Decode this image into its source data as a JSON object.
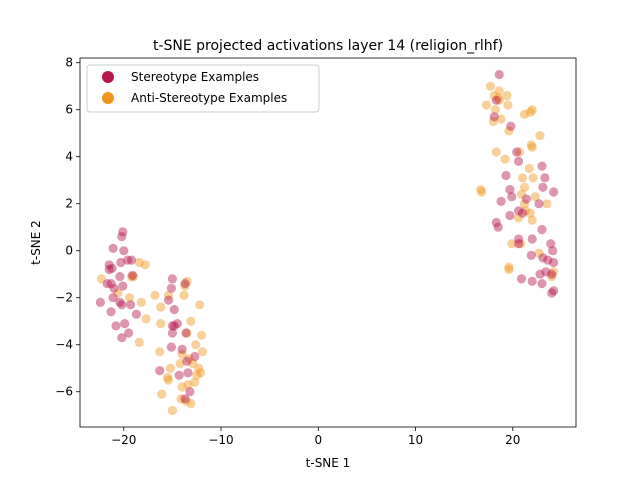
{
  "chart_data": {
    "type": "scatter",
    "title": "t-SNE projected activations layer 14 (religion_rlhf)",
    "xlabel": "t-SNE 1",
    "ylabel": "t-SNE 2",
    "xlim": [
      -24.5,
      26.5
    ],
    "ylim": [
      -7.5,
      8.2
    ],
    "xticks": [
      -20,
      -10,
      0,
      10,
      20
    ],
    "yticks": [
      -6,
      -4,
      -2,
      0,
      2,
      4,
      6,
      8
    ],
    "grid": false,
    "legend_position": "top-left",
    "series": [
      {
        "name": "Stereotype Examples",
        "color": "#b5174d",
        "points": [
          [
            -20.1,
            0.8
          ],
          [
            -20.2,
            0.6
          ],
          [
            -21.1,
            0.1
          ],
          [
            -20.0,
            0.0
          ],
          [
            -19.6,
            -0.4
          ],
          [
            -19.2,
            -0.4
          ],
          [
            -20.3,
            -0.5
          ],
          [
            -21.5,
            -0.6
          ],
          [
            -21.2,
            -0.75
          ],
          [
            -21.5,
            -0.8
          ],
          [
            -20.4,
            -1.1
          ],
          [
            -19.1,
            -1.05
          ],
          [
            -21.3,
            -1.4
          ],
          [
            -21.7,
            -1.4
          ],
          [
            -20.1,
            -1.5
          ],
          [
            -21.0,
            -1.6
          ],
          [
            -21.1,
            -2.0
          ],
          [
            -22.4,
            -2.2
          ],
          [
            -20.4,
            -2.2
          ],
          [
            -20.2,
            -2.3
          ],
          [
            -19.3,
            -2.3
          ],
          [
            -21.3,
            -2.6
          ],
          [
            -18.7,
            -2.7
          ],
          [
            -20.8,
            -3.2
          ],
          [
            -19.9,
            -3.1
          ],
          [
            -19.5,
            -3.5
          ],
          [
            -20.2,
            -3.7
          ],
          [
            -15.0,
            -1.2
          ],
          [
            -15.1,
            -1.6
          ],
          [
            -13.7,
            -1.4
          ],
          [
            -15.4,
            -2.1
          ],
          [
            -14.8,
            -2.5
          ],
          [
            -15.0,
            -3.2
          ],
          [
            -14.5,
            -3.1
          ],
          [
            -14.8,
            -3.2
          ],
          [
            -15.0,
            -3.5
          ],
          [
            -13.6,
            -3.5
          ],
          [
            -15.1,
            -4.1
          ],
          [
            -14.0,
            -4.2
          ],
          [
            -12.7,
            -4.5
          ],
          [
            -13.5,
            -4.7
          ],
          [
            -16.3,
            -5.1
          ],
          [
            -13.4,
            -5.2
          ],
          [
            -14.3,
            -5.3
          ],
          [
            -13.2,
            -6.0
          ],
          [
            -13.7,
            -6.3
          ],
          [
            18.6,
            7.5
          ],
          [
            18.3,
            6.4
          ],
          [
            18.1,
            5.7
          ],
          [
            19.8,
            5.3
          ],
          [
            20.6,
            3.8
          ],
          [
            19.3,
            3.2
          ],
          [
            19.7,
            2.6
          ],
          [
            18.8,
            2.1
          ],
          [
            19.9,
            2.3
          ],
          [
            21.4,
            2.2
          ],
          [
            20.6,
            1.7
          ],
          [
            22.7,
            2.0
          ],
          [
            21.0,
            1.6
          ],
          [
            18.3,
            1.2
          ],
          [
            19.7,
            1.5
          ],
          [
            20.6,
            0.5
          ],
          [
            20.6,
            0.3
          ],
          [
            22.0,
            0.5
          ],
          [
            23.0,
            0.9
          ],
          [
            21.9,
            -0.2
          ],
          [
            23.1,
            -0.3
          ],
          [
            24.1,
            0.0
          ],
          [
            23.9,
            0.3
          ],
          [
            23.6,
            -0.4
          ],
          [
            24.2,
            -0.5
          ],
          [
            23.4,
            -0.9
          ],
          [
            24.0,
            -1.0
          ],
          [
            22.0,
            -1.3
          ],
          [
            20.9,
            -1.2
          ],
          [
            23.0,
            -1.4
          ],
          [
            24.0,
            -1.8
          ],
          [
            24.2,
            -1.7
          ],
          [
            23.0,
            3.6
          ],
          [
            23.3,
            3.1
          ],
          [
            23.1,
            2.7
          ],
          [
            24.2,
            2.5
          ],
          [
            22.8,
            -1.0
          ],
          [
            18.5,
            1.0
          ],
          [
            20.4,
            4.2
          ]
        ]
      },
      {
        "name": "Anti-Stereotype Examples",
        "color": "#f0961e",
        "points": [
          [
            -22.3,
            -1.2
          ],
          [
            -19.2,
            -1.1
          ],
          [
            -18.4,
            -0.5
          ],
          [
            -17.8,
            -0.6
          ],
          [
            -19.0,
            -1.1
          ],
          [
            -19.4,
            -2.0
          ],
          [
            -20.6,
            -1.8
          ],
          [
            -18.2,
            -2.2
          ],
          [
            -17.7,
            -2.9
          ],
          [
            -18.4,
            -3.9
          ],
          [
            -16.8,
            -1.9
          ],
          [
            -16.2,
            -2.4
          ],
          [
            -15.4,
            -1.9
          ],
          [
            -13.5,
            -1.3
          ],
          [
            -13.7,
            -1.5
          ],
          [
            -13.8,
            -1.9
          ],
          [
            -12.2,
            -2.3
          ],
          [
            -16.2,
            -3.1
          ],
          [
            -13.1,
            -3.0
          ],
          [
            -13.5,
            -3.5
          ],
          [
            -12.0,
            -3.6
          ],
          [
            -12.6,
            -4.0
          ],
          [
            -11.9,
            -4.3
          ],
          [
            -14.0,
            -4.4
          ],
          [
            -16.3,
            -4.3
          ],
          [
            -13.3,
            -4.6
          ],
          [
            -12.9,
            -4.8
          ],
          [
            -14.2,
            -4.8
          ],
          [
            -12.3,
            -5.0
          ],
          [
            -12.1,
            -5.2
          ],
          [
            -12.5,
            -5.3
          ],
          [
            -15.2,
            -5.0
          ],
          [
            -15.5,
            -5.4
          ],
          [
            -15.4,
            -5.5
          ],
          [
            -12.7,
            -5.6
          ],
          [
            -13.4,
            -5.7
          ],
          [
            -14.0,
            -5.8
          ],
          [
            -16.1,
            -6.1
          ],
          [
            -14.1,
            -6.3
          ],
          [
            -13.6,
            -6.4
          ],
          [
            -13.1,
            -6.5
          ],
          [
            -15.0,
            -6.8
          ],
          [
            17.7,
            7.0
          ],
          [
            18.6,
            6.8
          ],
          [
            18.1,
            6.6
          ],
          [
            19.4,
            6.6
          ],
          [
            18.5,
            6.5
          ],
          [
            18.6,
            6.4
          ],
          [
            17.3,
            6.2
          ],
          [
            18.2,
            6.0
          ],
          [
            19.5,
            6.2
          ],
          [
            22.0,
            6.0
          ],
          [
            21.8,
            5.9
          ],
          [
            21.2,
            5.8
          ],
          [
            18.8,
            5.6
          ],
          [
            18.0,
            5.5
          ],
          [
            19.6,
            5.1
          ],
          [
            22.8,
            4.9
          ],
          [
            21.9,
            4.5
          ],
          [
            22.0,
            4.4
          ],
          [
            18.3,
            4.2
          ],
          [
            19.2,
            3.9
          ],
          [
            20.7,
            4.2
          ],
          [
            21.7,
            3.5
          ],
          [
            21.0,
            3.1
          ],
          [
            22.1,
            3.1
          ],
          [
            21.2,
            2.7
          ],
          [
            16.7,
            2.6
          ],
          [
            16.8,
            2.5
          ],
          [
            20.9,
            2.4
          ],
          [
            22.3,
            2.3
          ],
          [
            21.2,
            2.0
          ],
          [
            21.8,
            1.6
          ],
          [
            22.0,
            1.3
          ],
          [
            23.5,
            2.0
          ],
          [
            20.6,
            1.4
          ],
          [
            19.9,
            0.3
          ],
          [
            20.8,
            0.3
          ],
          [
            19.6,
            -0.8
          ],
          [
            19.6,
            -0.7
          ],
          [
            22.7,
            -0.1
          ],
          [
            24.2,
            -0.9
          ],
          [
            24.0,
            -1.1
          ],
          [
            21.3,
            1.7
          ]
        ]
      }
    ]
  }
}
